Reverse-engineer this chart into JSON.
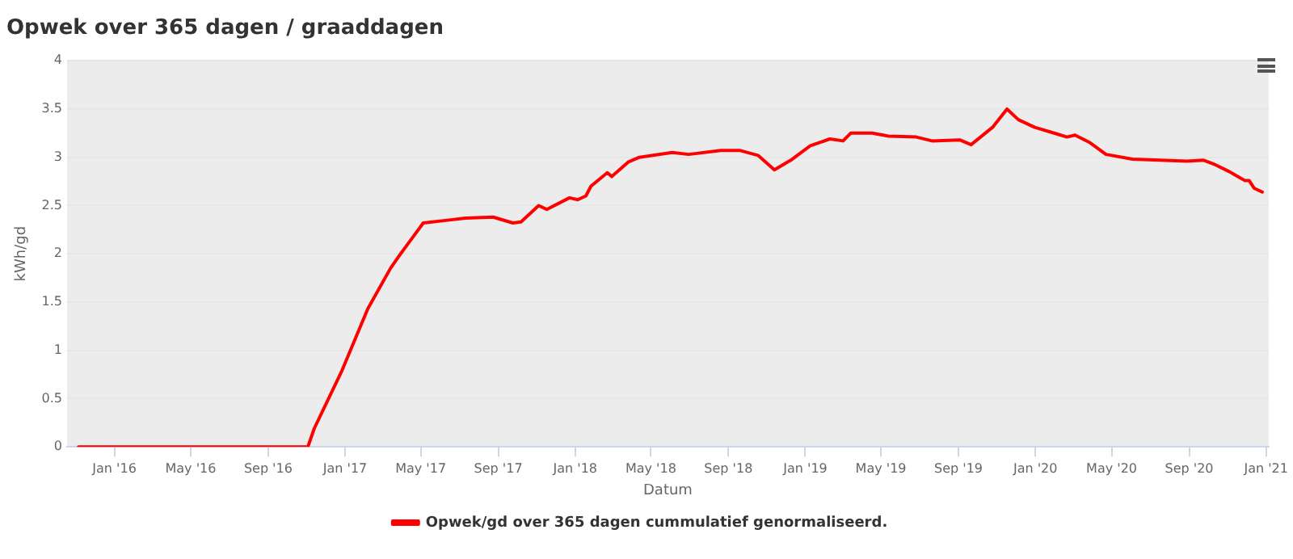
{
  "chart_data": {
    "type": "line",
    "title": "Opwek over 365 dagen / graaddagen",
    "xlabel": "Datum",
    "ylabel": "kWh/gd",
    "x": [
      "2015-11-05",
      "2016-11-03",
      "2016-11-13",
      "2016-12-27",
      "2017-02-06",
      "2017-03-14",
      "2017-03-30",
      "2017-04-17",
      "2017-05-05",
      "2017-06-15",
      "2017-07-11",
      "2017-08-24",
      "2017-09-24",
      "2017-10-07",
      "2017-11-04",
      "2017-11-17",
      "2017-12-23",
      "2018-01-05",
      "2018-01-18",
      "2018-01-26",
      "2018-02-21",
      "2018-02-28",
      "2018-03-26",
      "2018-04-13",
      "2018-06-04",
      "2018-06-30",
      "2018-08-20",
      "2018-09-20",
      "2018-10-18",
      "2018-11-13",
      "2018-12-09",
      "2019-01-09",
      "2019-02-09",
      "2019-03-02",
      "2019-03-14",
      "2019-04-17",
      "2019-05-13",
      "2019-06-26",
      "2019-07-21",
      "2019-09-03",
      "2019-09-21",
      "2019-10-25",
      "2019-11-17",
      "2019-12-05",
      "2019-12-31",
      "2020-02-05",
      "2020-02-20",
      "2020-03-04",
      "2020-03-28",
      "2020-04-22",
      "2020-06-03",
      "2020-07-16",
      "2020-08-29",
      "2020-09-24",
      "2020-10-10",
      "2020-11-04",
      "2020-11-28",
      "2020-12-05",
      "2020-12-13",
      "2020-12-26"
    ],
    "series": [
      {
        "name": "Opwek/gd over 365 dagen cummulatief genormaliseerd.",
        "color": "#ff0000",
        "values": [
          0,
          0,
          0.19,
          0.79,
          1.43,
          1.85,
          2.0,
          2.16,
          2.32,
          2.35,
          2.37,
          2.38,
          2.32,
          2.33,
          2.5,
          2.46,
          2.58,
          2.56,
          2.6,
          2.7,
          2.84,
          2.8,
          2.95,
          3.0,
          3.05,
          3.03,
          3.07,
          3.07,
          3.02,
          2.87,
          2.97,
          3.12,
          3.19,
          3.17,
          3.25,
          3.25,
          3.22,
          3.21,
          3.17,
          3.18,
          3.13,
          3.31,
          3.5,
          3.39,
          3.31,
          3.24,
          3.21,
          3.23,
          3.15,
          3.03,
          2.98,
          2.97,
          2.96,
          2.97,
          2.93,
          2.85,
          2.76,
          2.76,
          2.68,
          2.64
        ]
      }
    ],
    "xlim": [
      "2015-10-18",
      "2021-01-05"
    ],
    "xticks": [
      {
        "value": "2016-01",
        "label": "Jan '16"
      },
      {
        "value": "2016-05",
        "label": "May '16"
      },
      {
        "value": "2016-09",
        "label": "Sep '16"
      },
      {
        "value": "2017-01",
        "label": "Jan '17"
      },
      {
        "value": "2017-05",
        "label": "May '17"
      },
      {
        "value": "2017-09",
        "label": "Sep '17"
      },
      {
        "value": "2018-01",
        "label": "Jan '18"
      },
      {
        "value": "2018-05",
        "label": "May '18"
      },
      {
        "value": "2018-09",
        "label": "Sep '18"
      },
      {
        "value": "2019-01",
        "label": "Jan '19"
      },
      {
        "value": "2019-05",
        "label": "May '19"
      },
      {
        "value": "2019-09",
        "label": "Sep '19"
      },
      {
        "value": "2020-01",
        "label": "Jan '20"
      },
      {
        "value": "2020-05",
        "label": "May '20"
      },
      {
        "value": "2020-09",
        "label": "Sep '20"
      },
      {
        "value": "2021-01",
        "label": "Jan '21"
      }
    ],
    "ylim": [
      0,
      4
    ],
    "yticks": [
      0,
      0.5,
      1,
      1.5,
      2,
      2.5,
      3,
      3.5,
      4
    ],
    "grid": "y",
    "legend": "bottom",
    "marker": "none",
    "line_style": "solid"
  }
}
